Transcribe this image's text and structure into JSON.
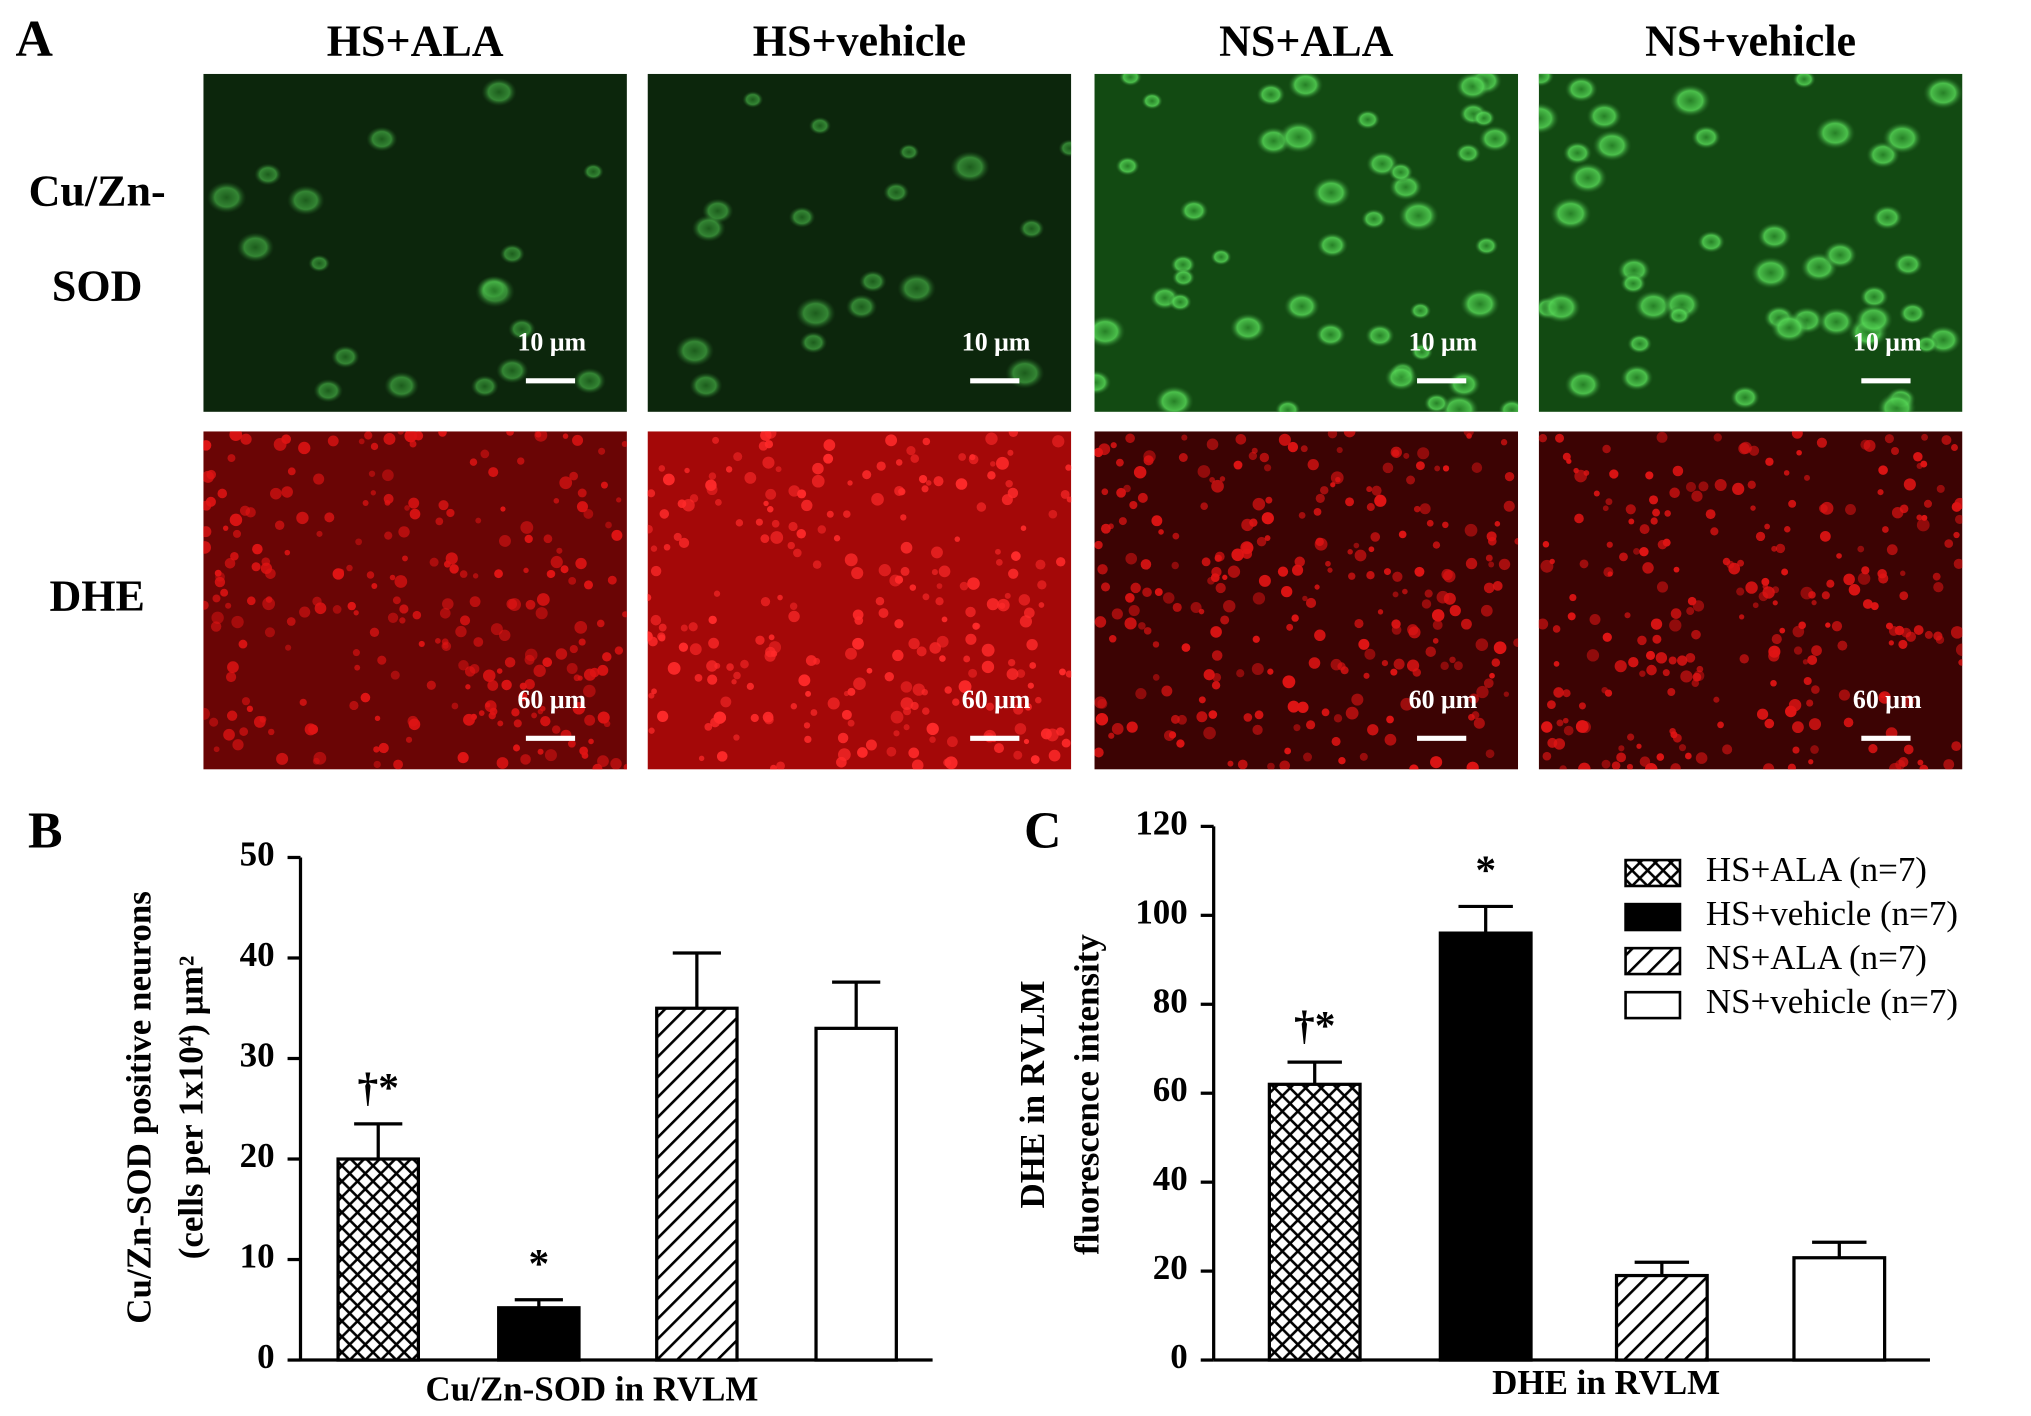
{
  "panel_a": {
    "label": "A",
    "columns": [
      "HS+ALA",
      "HS+vehicle",
      "NS+ALA",
      "NS+vehicle"
    ],
    "rows": [
      {
        "lines": [
          "Cu/Zn-",
          "SOD"
        ],
        "scale": "10 μm"
      },
      {
        "lines": [
          "DHE"
        ],
        "scale": "60 μm"
      }
    ]
  },
  "chart_data": [
    {
      "type": "bar",
      "panel_label": "B",
      "ylabel": [
        "Cu/Zn-SOD positive neurons",
        "(cells per 1x10⁴) µm²"
      ],
      "xlabel": "Cu/Zn-SOD in RVLM",
      "values": [
        20,
        5.2,
        35,
        33
      ],
      "errors": [
        3.5,
        0.8,
        5.5,
        4.6
      ],
      "patterns": [
        "crosshatch",
        "solid",
        "diagonal",
        "none"
      ],
      "annotations": [
        "†*",
        "*",
        null,
        null
      ],
      "ylim": [
        0,
        50
      ],
      "yticks": [
        0,
        10,
        20,
        30,
        40,
        50
      ]
    },
    {
      "type": "bar",
      "panel_label": "C",
      "ylabel": [
        "DHE in RVLM",
        "fluorescence intensity"
      ],
      "xlabel": "DHE in RVLM",
      "values": [
        62,
        96,
        19,
        23
      ],
      "errors": [
        5,
        6,
        3,
        3.5
      ],
      "patterns": [
        "crosshatch",
        "solid",
        "diagonal",
        "none"
      ],
      "annotations": [
        "†*",
        "*",
        null,
        null
      ],
      "legend": [
        "HS+ALA (n=7)",
        "HS+vehicle (n=7)",
        "NS+ALA (n=7)",
        "NS+vehicle (n=7)"
      ],
      "legend_position": "upper right",
      "ylim": [
        0,
        120
      ],
      "yticks": [
        0,
        20,
        40,
        60,
        80,
        100,
        120
      ]
    }
  ]
}
